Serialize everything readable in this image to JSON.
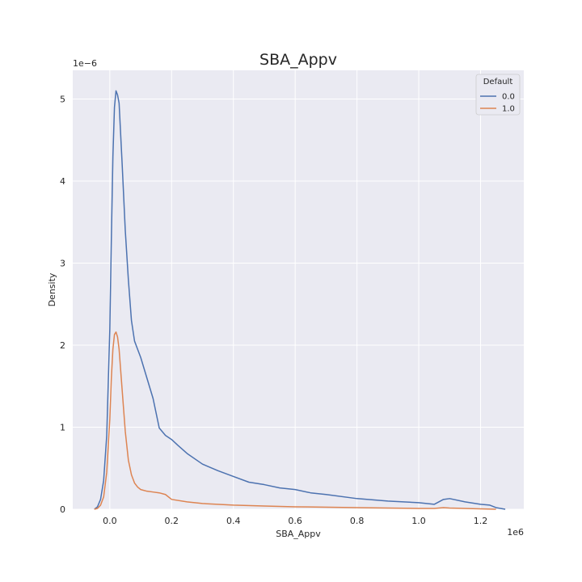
{
  "chart_data": {
    "type": "line",
    "title": "SBA_Appv",
    "xlabel": "SBA_Appv",
    "ylabel": "Density",
    "x_offset_text": "1e6",
    "y_offset_text": "1e−6",
    "x_ticks": [
      "0.0",
      "0.2",
      "0.4",
      "0.6",
      "0.8",
      "1.0",
      "1.2"
    ],
    "y_ticks": [
      "0",
      "1",
      "2",
      "3",
      "4",
      "5"
    ],
    "xlim": [
      -0.12,
      1.34
    ],
    "ylim": [
      0,
      5.35
    ],
    "grid": true,
    "legend": {
      "title": "Default",
      "position": "top-right"
    },
    "series": [
      {
        "name": "0.0",
        "color": "#4c72b0",
        "x": [
          -0.05,
          -0.04,
          -0.03,
          -0.02,
          -0.01,
          0.0,
          0.005,
          0.01,
          0.015,
          0.02,
          0.025,
          0.03,
          0.04,
          0.05,
          0.06,
          0.07,
          0.08,
          0.09,
          0.1,
          0.12,
          0.14,
          0.16,
          0.18,
          0.2,
          0.22,
          0.25,
          0.3,
          0.35,
          0.4,
          0.45,
          0.5,
          0.55,
          0.6,
          0.65,
          0.7,
          0.8,
          0.9,
          1.0,
          1.05,
          1.08,
          1.1,
          1.15,
          1.2,
          1.23,
          1.25,
          1.28
        ],
        "values": [
          0.0,
          0.03,
          0.12,
          0.35,
          0.9,
          2.2,
          3.3,
          4.3,
          4.9,
          5.1,
          5.05,
          4.95,
          4.2,
          3.4,
          2.8,
          2.3,
          2.05,
          1.95,
          1.85,
          1.6,
          1.35,
          0.99,
          0.9,
          0.85,
          0.78,
          0.68,
          0.55,
          0.47,
          0.4,
          0.33,
          0.3,
          0.26,
          0.24,
          0.2,
          0.18,
          0.13,
          0.1,
          0.08,
          0.06,
          0.12,
          0.13,
          0.09,
          0.06,
          0.05,
          0.02,
          0.0
        ]
      },
      {
        "name": "1.0",
        "color": "#dd8452",
        "x": [
          -0.05,
          -0.04,
          -0.03,
          -0.02,
          -0.01,
          0.0,
          0.005,
          0.01,
          0.015,
          0.02,
          0.025,
          0.03,
          0.04,
          0.05,
          0.06,
          0.07,
          0.08,
          0.09,
          0.1,
          0.12,
          0.14,
          0.16,
          0.18,
          0.2,
          0.25,
          0.3,
          0.4,
          0.5,
          0.6,
          0.8,
          1.0,
          1.05,
          1.08,
          1.1,
          1.2,
          1.25
        ],
        "values": [
          0.0,
          0.01,
          0.05,
          0.15,
          0.45,
          1.1,
          1.6,
          1.95,
          2.13,
          2.16,
          2.1,
          1.95,
          1.45,
          0.95,
          0.6,
          0.42,
          0.32,
          0.27,
          0.24,
          0.22,
          0.21,
          0.2,
          0.18,
          0.12,
          0.09,
          0.07,
          0.05,
          0.04,
          0.03,
          0.02,
          0.01,
          0.01,
          0.02,
          0.015,
          0.005,
          0.0
        ]
      }
    ]
  }
}
